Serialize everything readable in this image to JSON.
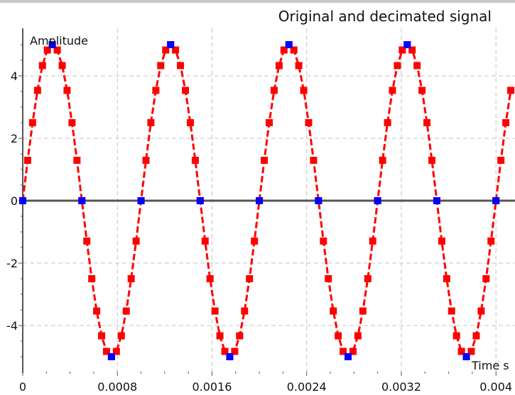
{
  "chart_data": {
    "type": "line",
    "title": "Original and decimated signal",
    "xlabel": "Time s",
    "ylabel": "Amplitude",
    "xlim": [
      0,
      0.00414
    ],
    "ylim": [
      -5.5,
      5.5
    ],
    "grid": true,
    "xticks": [
      {
        "value": 0,
        "label": "0"
      },
      {
        "value": 0.0008,
        "label": "0.0008"
      },
      {
        "value": 0.0016,
        "label": "0.0016"
      },
      {
        "value": 0.0024,
        "label": "0.0024"
      },
      {
        "value": 0.0032,
        "label": "0.0032"
      },
      {
        "value": 0.004,
        "label": "0.004"
      }
    ],
    "yticks": [
      {
        "value": -4,
        "label": "-4"
      },
      {
        "value": -2,
        "label": "-2"
      },
      {
        "value": 0,
        "label": "0"
      },
      {
        "value": 2,
        "label": "2"
      },
      {
        "value": 4,
        "label": "4"
      }
    ],
    "series": [
      {
        "color": "#ff0000",
        "line_style": "dashed",
        "marker": "square",
        "amplitude": 5,
        "frequency_hz": 1000,
        "sample_interval_s": 4.166667e-05,
        "x_start": 0,
        "x_end": 0.00414
      },
      {
        "color": "#0000ff",
        "line_style": "none",
        "marker": "square",
        "amplitude": 5,
        "frequency_hz": 1000,
        "sample_interval_s": 0.00025,
        "x_start": 0,
        "x_end": 0.00414
      }
    ]
  }
}
